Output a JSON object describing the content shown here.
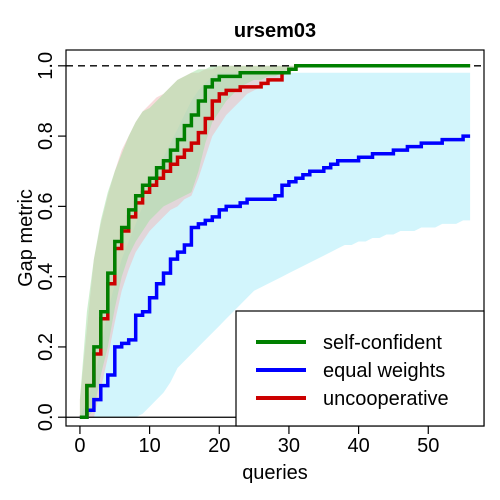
{
  "chart_data": {
    "type": "line",
    "title": "ursem03",
    "xlabel": "queries",
    "ylabel": "Gap metric",
    "xlim": [
      -2,
      58
    ],
    "ylim": [
      -0.025,
      1.045
    ],
    "xticks": [
      0,
      10,
      20,
      30,
      40,
      50
    ],
    "yticks": [
      0.0,
      0.2,
      0.4,
      0.6,
      0.8,
      1.0
    ],
    "ytick_labels": [
      "0.0",
      "0.2",
      "0.4",
      "0.6",
      "0.8",
      "1.0"
    ],
    "reference_lines": [
      {
        "y": 1.0,
        "style": "dashed"
      },
      {
        "y": 0.0,
        "style": "solid"
      }
    ],
    "legend_position": "bottom-right",
    "series": [
      {
        "name": "self-confident",
        "color": "#008000",
        "band_color": "#9fdf9f",
        "x": [
          0,
          1,
          2,
          3,
          4,
          5,
          6,
          7,
          8,
          9,
          10,
          11,
          12,
          13,
          14,
          15,
          16,
          17,
          18,
          19,
          20,
          21,
          22,
          23,
          24,
          25,
          26,
          27,
          28,
          29,
          30,
          31,
          32,
          33,
          34,
          35,
          36,
          37,
          38,
          39,
          40,
          41,
          42,
          43,
          44,
          45,
          46,
          47,
          48,
          49,
          50,
          51,
          52,
          53,
          54,
          55,
          56
        ],
        "values": [
          0.0,
          0.09,
          0.2,
          0.3,
          0.41,
          0.5,
          0.54,
          0.59,
          0.63,
          0.66,
          0.68,
          0.71,
          0.73,
          0.76,
          0.79,
          0.83,
          0.86,
          0.9,
          0.94,
          0.96,
          0.97,
          0.97,
          0.97,
          0.98,
          0.98,
          0.98,
          0.98,
          0.98,
          0.98,
          0.98,
          0.99,
          1.0,
          1.0,
          1.0,
          1.0,
          1.0,
          1.0,
          1.0,
          1.0,
          1.0,
          1.0,
          1.0,
          1.0,
          1.0,
          1.0,
          1.0,
          1.0,
          1.0,
          1.0,
          1.0,
          1.0,
          1.0,
          1.0,
          1.0,
          1.0,
          1.0,
          1.0
        ],
        "lower": [
          0.0,
          0.0,
          0.02,
          0.12,
          0.2,
          0.31,
          0.4,
          0.46,
          0.5,
          0.53,
          0.56,
          0.58,
          0.6,
          0.61,
          0.62,
          0.63,
          0.64,
          0.7,
          0.78,
          0.84,
          0.87,
          0.9,
          0.92,
          0.94,
          0.95,
          0.96,
          0.96,
          0.97,
          0.97,
          0.98,
          0.99,
          1.0,
          1.0,
          1.0,
          1.0,
          1.0,
          1.0,
          1.0,
          1.0,
          1.0,
          1.0,
          1.0,
          1.0,
          1.0,
          1.0,
          1.0,
          1.0,
          1.0,
          1.0,
          1.0,
          1.0,
          1.0,
          1.0,
          1.0,
          1.0,
          1.0,
          1.0
        ],
        "upper": [
          0.05,
          0.3,
          0.45,
          0.56,
          0.64,
          0.7,
          0.75,
          0.8,
          0.84,
          0.87,
          0.88,
          0.9,
          0.92,
          0.94,
          0.96,
          0.97,
          0.98,
          0.99,
          0.99,
          1.0,
          1.0,
          1.0,
          1.0,
          1.0,
          1.0,
          1.0,
          1.0,
          1.0,
          1.0,
          1.0,
          1.0,
          1.0,
          1.0,
          1.0,
          1.0,
          1.0,
          1.0,
          1.0,
          1.0,
          1.0,
          1.0,
          1.0,
          1.0,
          1.0,
          1.0,
          1.0,
          1.0,
          1.0,
          1.0,
          1.0,
          1.0,
          1.0,
          1.0,
          1.0,
          1.0,
          1.0,
          1.0
        ]
      },
      {
        "name": "equal weights",
        "color": "#0000ff",
        "band_color": "#a6ecfa",
        "x": [
          0,
          1,
          2,
          3,
          4,
          5,
          6,
          7,
          8,
          9,
          10,
          11,
          12,
          13,
          14,
          15,
          16,
          17,
          18,
          19,
          20,
          21,
          22,
          23,
          24,
          25,
          26,
          27,
          28,
          29,
          30,
          31,
          32,
          33,
          34,
          35,
          36,
          37,
          38,
          39,
          40,
          41,
          42,
          43,
          44,
          45,
          46,
          47,
          48,
          49,
          50,
          51,
          52,
          53,
          54,
          55,
          56
        ],
        "values": [
          0.0,
          0.02,
          0.05,
          0.09,
          0.12,
          0.2,
          0.21,
          0.22,
          0.29,
          0.3,
          0.34,
          0.38,
          0.41,
          0.45,
          0.47,
          0.49,
          0.54,
          0.55,
          0.56,
          0.57,
          0.59,
          0.6,
          0.6,
          0.61,
          0.62,
          0.62,
          0.62,
          0.62,
          0.63,
          0.66,
          0.67,
          0.68,
          0.69,
          0.7,
          0.7,
          0.71,
          0.72,
          0.73,
          0.73,
          0.73,
          0.74,
          0.74,
          0.75,
          0.75,
          0.75,
          0.76,
          0.76,
          0.77,
          0.77,
          0.78,
          0.78,
          0.78,
          0.79,
          0.79,
          0.79,
          0.8,
          0.8
        ],
        "lower": [
          0.0,
          0.0,
          0.0,
          0.0,
          0.0,
          0.0,
          0.0,
          0.0,
          0.0,
          0.01,
          0.03,
          0.05,
          0.07,
          0.1,
          0.14,
          0.16,
          0.18,
          0.2,
          0.22,
          0.24,
          0.26,
          0.28,
          0.3,
          0.32,
          0.34,
          0.36,
          0.37,
          0.38,
          0.39,
          0.4,
          0.41,
          0.42,
          0.43,
          0.44,
          0.45,
          0.46,
          0.47,
          0.48,
          0.49,
          0.49,
          0.5,
          0.5,
          0.51,
          0.51,
          0.52,
          0.52,
          0.53,
          0.53,
          0.53,
          0.54,
          0.54,
          0.54,
          0.55,
          0.55,
          0.55,
          0.56,
          0.56
        ],
        "upper": [
          0.0,
          0.05,
          0.1,
          0.2,
          0.3,
          0.38,
          0.45,
          0.5,
          0.55,
          0.6,
          0.65,
          0.7,
          0.74,
          0.78,
          0.82,
          0.86,
          0.9,
          0.93,
          0.95,
          0.97,
          0.98,
          0.98,
          0.98,
          0.98,
          0.98,
          0.98,
          0.98,
          0.98,
          0.98,
          0.98,
          0.98,
          0.98,
          0.98,
          0.98,
          0.98,
          0.98,
          0.98,
          0.98,
          0.98,
          0.98,
          0.98,
          0.98,
          0.98,
          0.98,
          0.98,
          0.98,
          0.98,
          0.98,
          0.98,
          0.98,
          0.98,
          0.98,
          0.98,
          0.98,
          0.98,
          0.98,
          0.98
        ]
      },
      {
        "name": "uncooperative",
        "color": "#cc0000",
        "band_color": "#f2b8b8",
        "x": [
          0,
          1,
          2,
          3,
          4,
          5,
          6,
          7,
          8,
          9,
          10,
          11,
          12,
          13,
          14,
          15,
          16,
          17,
          18,
          19,
          20,
          21,
          22,
          23,
          24,
          25,
          26,
          27,
          28,
          29,
          30,
          31,
          32,
          33,
          34,
          35,
          36,
          37,
          38,
          39,
          40,
          41,
          42,
          43,
          44,
          45,
          46,
          47,
          48,
          49,
          50,
          51,
          52,
          53,
          54,
          55,
          56
        ],
        "values": [
          0.0,
          0.09,
          0.18,
          0.28,
          0.38,
          0.48,
          0.53,
          0.57,
          0.61,
          0.64,
          0.66,
          0.68,
          0.7,
          0.72,
          0.74,
          0.76,
          0.78,
          0.81,
          0.85,
          0.9,
          0.92,
          0.93,
          0.93,
          0.94,
          0.94,
          0.94,
          0.95,
          0.96,
          0.96,
          0.98,
          0.99,
          1.0,
          1.0,
          1.0,
          1.0,
          1.0,
          1.0,
          1.0,
          1.0,
          1.0,
          1.0,
          1.0,
          1.0,
          1.0,
          1.0,
          1.0,
          1.0,
          1.0,
          1.0,
          1.0,
          1.0,
          1.0,
          1.0,
          1.0,
          1.0,
          1.0,
          1.0
        ],
        "lower": [
          0.0,
          0.0,
          0.0,
          0.08,
          0.17,
          0.27,
          0.36,
          0.42,
          0.47,
          0.5,
          0.53,
          0.55,
          0.57,
          0.59,
          0.6,
          0.62,
          0.63,
          0.68,
          0.74,
          0.8,
          0.83,
          0.86,
          0.88,
          0.9,
          0.92,
          0.93,
          0.94,
          0.95,
          0.96,
          0.97,
          0.98,
          0.99,
          1.0,
          1.0,
          1.0,
          1.0,
          1.0,
          1.0,
          1.0,
          1.0,
          1.0,
          1.0,
          1.0,
          1.0,
          1.0,
          1.0,
          1.0,
          1.0,
          1.0,
          1.0,
          1.0,
          1.0,
          1.0,
          1.0,
          1.0,
          1.0,
          1.0
        ],
        "upper": [
          0.05,
          0.25,
          0.45,
          0.55,
          0.63,
          0.7,
          0.76,
          0.8,
          0.84,
          0.87,
          0.89,
          0.91,
          0.92,
          0.94,
          0.96,
          0.97,
          0.98,
          0.98,
          0.99,
          0.99,
          1.0,
          1.0,
          1.0,
          1.0,
          1.0,
          1.0,
          1.0,
          1.0,
          1.0,
          1.0,
          1.0,
          1.0,
          1.0,
          1.0,
          1.0,
          1.0,
          1.0,
          1.0,
          1.0,
          1.0,
          1.0,
          1.0,
          1.0,
          1.0,
          1.0,
          1.0,
          1.0,
          1.0,
          1.0,
          1.0,
          1.0,
          1.0,
          1.0,
          1.0,
          1.0,
          1.0,
          1.0
        ]
      }
    ]
  }
}
